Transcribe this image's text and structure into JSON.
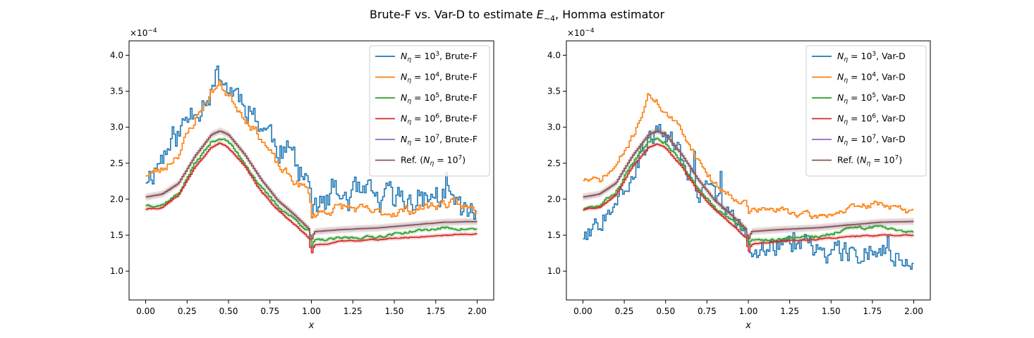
{
  "figure": {
    "title_main": "Brute-F vs. Var-D to estimate ",
    "title_sym": "E",
    "title_sub": "~4",
    "title_rest": ", Homma estimator"
  },
  "chart_data": [
    {
      "type": "line",
      "xlabel": "x",
      "ylabel": "",
      "xlim": [
        -0.1,
        2.1
      ],
      "ylim": [
        0.6,
        4.2
      ],
      "scale_note": "×10^−4",
      "xticks": [
        0.0,
        0.25,
        0.5,
        0.75,
        1.0,
        1.25,
        1.5,
        1.75,
        2.0
      ],
      "xtick_labels": [
        "0.00",
        "0.25",
        "0.50",
        "0.75",
        "1.00",
        "1.25",
        "1.50",
        "1.75",
        "2.00"
      ],
      "yticks": [
        1.0,
        1.5,
        2.0,
        2.5,
        3.0,
        3.5,
        4.0
      ],
      "ytick_labels": [
        "1.0",
        "1.5",
        "2.0",
        "2.5",
        "3.0",
        "3.5",
        "4.0"
      ],
      "legend_position": "top-right",
      "series": [
        {
          "legend": "10^3, Brute-F",
          "exp": "3",
          "suffix": ", Brute-F",
          "color": "#1f77b4",
          "noise": 0.22,
          "seed": 11,
          "ref": false,
          "x": [
            0.0,
            0.1,
            0.2,
            0.3,
            0.4,
            0.45,
            0.5,
            0.6,
            0.7,
            0.8,
            0.9,
            0.99,
            1.0,
            1.02,
            1.2,
            1.4,
            1.6,
            1.8,
            2.0
          ],
          "y": [
            2.3,
            2.6,
            2.9,
            3.3,
            3.6,
            3.75,
            3.55,
            3.4,
            3.05,
            2.75,
            2.55,
            2.3,
            1.75,
            1.85,
            2.05,
            1.95,
            2.0,
            2.05,
            1.7
          ]
        },
        {
          "legend": "10^4, Brute-F",
          "exp": "4",
          "suffix": ", Brute-F",
          "color": "#ff7f0e",
          "noise": 0.07,
          "seed": 23,
          "ref": false,
          "x": [
            0.0,
            0.1,
            0.2,
            0.3,
            0.4,
            0.45,
            0.5,
            0.6,
            0.7,
            0.8,
            0.9,
            0.99,
            1.0,
            1.02,
            1.2,
            1.4,
            1.6,
            1.8,
            2.0
          ],
          "y": [
            2.35,
            2.4,
            2.65,
            3.1,
            3.5,
            3.6,
            3.45,
            3.15,
            2.85,
            2.45,
            2.25,
            2.1,
            1.75,
            1.8,
            1.9,
            1.8,
            1.85,
            1.95,
            1.85
          ]
        },
        {
          "legend": "10^5, Brute-F",
          "exp": "5",
          "suffix": ", Brute-F",
          "color": "#2ca02c",
          "noise": 0.02,
          "seed": 37,
          "ref": false,
          "x": [
            0.0,
            0.1,
            0.2,
            0.3,
            0.4,
            0.45,
            0.5,
            0.6,
            0.7,
            0.8,
            0.9,
            0.99,
            1.0,
            1.02,
            1.2,
            1.4,
            1.6,
            1.8,
            2.0
          ],
          "y": [
            1.92,
            1.92,
            2.08,
            2.5,
            2.8,
            2.85,
            2.8,
            2.5,
            2.15,
            1.9,
            1.72,
            1.55,
            1.32,
            1.42,
            1.46,
            1.48,
            1.55,
            1.6,
            1.58
          ]
        },
        {
          "legend": "10^6, Brute-F",
          "exp": "6",
          "suffix": ", Brute-F",
          "color": "#d62728",
          "noise": 0.008,
          "seed": 41,
          "ref": false,
          "x": [
            0.0,
            0.1,
            0.2,
            0.3,
            0.4,
            0.45,
            0.5,
            0.6,
            0.7,
            0.8,
            0.9,
            0.99,
            1.0,
            1.02,
            1.2,
            1.4,
            1.6,
            1.8,
            2.0
          ],
          "y": [
            1.86,
            1.88,
            2.05,
            2.45,
            2.72,
            2.78,
            2.72,
            2.45,
            2.1,
            1.85,
            1.65,
            1.45,
            1.22,
            1.36,
            1.42,
            1.44,
            1.47,
            1.5,
            1.52
          ]
        },
        {
          "legend": "10^7, Brute-F",
          "exp": "7",
          "suffix": ", Brute-F",
          "color": "#9467bd",
          "noise": 0.003,
          "seed": 53,
          "ref": false,
          "x": [
            0.0,
            0.1,
            0.2,
            0.3,
            0.4,
            0.45,
            0.5,
            0.6,
            0.7,
            0.8,
            0.9,
            0.99,
            1.0,
            1.02,
            1.2,
            1.4,
            1.6,
            1.8,
            2.0
          ],
          "y": [
            2.03,
            2.07,
            2.22,
            2.6,
            2.9,
            2.95,
            2.9,
            2.62,
            2.27,
            1.98,
            1.78,
            1.58,
            1.42,
            1.55,
            1.58,
            1.6,
            1.64,
            1.68,
            1.69
          ]
        },
        {
          "legend": "Ref. (10^7)",
          "exp": "7",
          "prefix": "Ref. (",
          "suffix": ")",
          "color": "#8c564b",
          "noise": 0.0,
          "seed": 1,
          "ref": true,
          "x": [
            0.0,
            0.1,
            0.2,
            0.3,
            0.4,
            0.45,
            0.5,
            0.6,
            0.7,
            0.8,
            0.9,
            0.99,
            1.0,
            1.02,
            1.2,
            1.4,
            1.6,
            1.8,
            2.0
          ],
          "y": [
            2.03,
            2.07,
            2.22,
            2.6,
            2.9,
            2.95,
            2.9,
            2.62,
            2.27,
            1.98,
            1.78,
            1.58,
            1.42,
            1.55,
            1.58,
            1.6,
            1.64,
            1.68,
            1.69
          ]
        }
      ]
    },
    {
      "type": "line",
      "xlabel": "x",
      "ylabel": "",
      "xlim": [
        -0.1,
        2.1
      ],
      "ylim": [
        0.6,
        4.2
      ],
      "scale_note": "×10^−4",
      "xticks": [
        0.0,
        0.25,
        0.5,
        0.75,
        1.0,
        1.25,
        1.5,
        1.75,
        2.0
      ],
      "xtick_labels": [
        "0.00",
        "0.25",
        "0.50",
        "0.75",
        "1.00",
        "1.25",
        "1.50",
        "1.75",
        "2.00"
      ],
      "yticks": [
        1.0,
        1.5,
        2.0,
        2.5,
        3.0,
        3.5,
        4.0
      ],
      "ytick_labels": [
        "1.0",
        "1.5",
        "2.0",
        "2.5",
        "3.0",
        "3.5",
        "4.0"
      ],
      "legend_position": "top-right",
      "series": [
        {
          "legend": "10^3, Var-D",
          "exp": "3",
          "suffix": ", Var-D",
          "color": "#1f77b4",
          "noise": 0.16,
          "seed": 67,
          "ref": false,
          "x": [
            0.0,
            0.1,
            0.2,
            0.3,
            0.4,
            0.45,
            0.5,
            0.6,
            0.7,
            0.8,
            0.9,
            0.99,
            1.0,
            1.02,
            1.2,
            1.4,
            1.6,
            1.8,
            2.0
          ],
          "y": [
            1.5,
            1.7,
            2.1,
            2.4,
            2.8,
            2.95,
            2.9,
            2.55,
            2.2,
            1.9,
            1.75,
            1.5,
            1.3,
            1.3,
            1.35,
            1.3,
            1.3,
            1.3,
            1.2
          ]
        },
        {
          "legend": "10^4, Var-D",
          "exp": "4",
          "suffix": ", Var-D",
          "color": "#ff7f0e",
          "noise": 0.05,
          "seed": 71,
          "ref": false,
          "x": [
            0.0,
            0.1,
            0.2,
            0.3,
            0.4,
            0.45,
            0.5,
            0.6,
            0.7,
            0.8,
            0.9,
            0.99,
            1.0,
            1.02,
            1.2,
            1.4,
            1.6,
            1.8,
            2.0
          ],
          "y": [
            2.28,
            2.25,
            2.45,
            2.85,
            3.45,
            3.35,
            3.2,
            2.95,
            2.55,
            2.2,
            2.05,
            1.95,
            1.8,
            1.85,
            1.85,
            1.75,
            1.85,
            1.95,
            1.8
          ]
        },
        {
          "legend": "10^5, Var-D",
          "exp": "5",
          "suffix": ", Var-D",
          "color": "#2ca02c",
          "noise": 0.025,
          "seed": 83,
          "ref": false,
          "x": [
            0.0,
            0.1,
            0.2,
            0.3,
            0.4,
            0.45,
            0.5,
            0.6,
            0.7,
            0.8,
            0.9,
            0.99,
            1.0,
            1.02,
            1.2,
            1.4,
            1.6,
            1.8,
            2.0
          ],
          "y": [
            1.86,
            1.9,
            2.1,
            2.5,
            2.8,
            2.88,
            2.8,
            2.5,
            2.12,
            1.88,
            1.7,
            1.55,
            1.35,
            1.42,
            1.45,
            1.47,
            1.58,
            1.62,
            1.55
          ]
        },
        {
          "legend": "10^6, Var-D",
          "exp": "6",
          "suffix": ", Var-D",
          "color": "#d62728",
          "noise": 0.008,
          "seed": 89,
          "ref": false,
          "x": [
            0.0,
            0.1,
            0.2,
            0.3,
            0.4,
            0.45,
            0.5,
            0.6,
            0.7,
            0.8,
            0.9,
            0.99,
            1.0,
            1.02,
            1.2,
            1.4,
            1.6,
            1.8,
            2.0
          ],
          "y": [
            1.86,
            1.88,
            2.05,
            2.45,
            2.72,
            2.77,
            2.72,
            2.45,
            2.1,
            1.85,
            1.65,
            1.46,
            1.24,
            1.37,
            1.42,
            1.44,
            1.48,
            1.5,
            1.5
          ]
        },
        {
          "legend": "10^7, Var-D",
          "exp": "7",
          "suffix": ", Var-D",
          "color": "#9467bd",
          "noise": 0.003,
          "seed": 97,
          "ref": false,
          "x": [
            0.0,
            0.1,
            0.2,
            0.3,
            0.4,
            0.45,
            0.5,
            0.6,
            0.7,
            0.8,
            0.9,
            0.99,
            1.0,
            1.02,
            1.2,
            1.4,
            1.6,
            1.8,
            2.0
          ],
          "y": [
            2.03,
            2.07,
            2.22,
            2.6,
            2.9,
            2.95,
            2.9,
            2.62,
            2.27,
            1.98,
            1.78,
            1.58,
            1.42,
            1.55,
            1.58,
            1.6,
            1.64,
            1.68,
            1.69
          ]
        },
        {
          "legend": "Ref. (10^7)",
          "exp": "7",
          "prefix": "Ref. (",
          "suffix": ")",
          "color": "#8c564b",
          "noise": 0.0,
          "seed": 2,
          "ref": true,
          "x": [
            0.0,
            0.1,
            0.2,
            0.3,
            0.4,
            0.45,
            0.5,
            0.6,
            0.7,
            0.8,
            0.9,
            0.99,
            1.0,
            1.02,
            1.2,
            1.4,
            1.6,
            1.8,
            2.0
          ],
          "y": [
            2.03,
            2.07,
            2.22,
            2.6,
            2.9,
            2.95,
            2.9,
            2.62,
            2.27,
            1.98,
            1.78,
            1.58,
            1.42,
            1.55,
            1.58,
            1.6,
            1.64,
            1.68,
            1.69
          ]
        }
      ]
    }
  ]
}
